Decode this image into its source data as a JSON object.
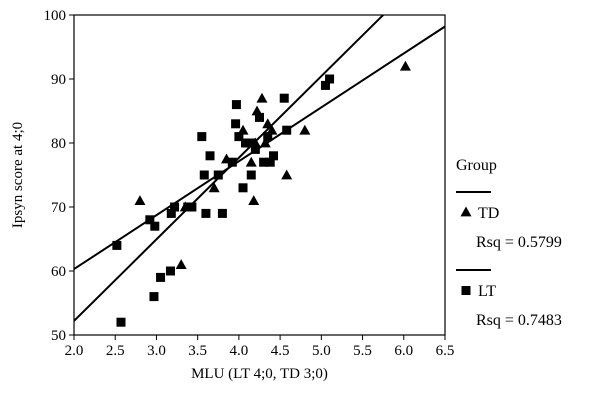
{
  "chart_data": {
    "type": "scatter",
    "title": "",
    "xlabel": "MLU (LT 4;0, TD 3;0)",
    "ylabel": "Ipsyn score at 4;0",
    "xlim": [
      2.0,
      6.5
    ],
    "ylim": [
      50,
      100
    ],
    "x_ticks": [
      "2.0",
      "2.5",
      "3.0",
      "3.5",
      "4.0",
      "4.5",
      "5.0",
      "5.5",
      "6.0",
      "6.5"
    ],
    "y_ticks": [
      "50",
      "60",
      "70",
      "80",
      "90",
      "100"
    ],
    "grid": false,
    "legend": {
      "title": "Group",
      "placement": "right",
      "entries": [
        {
          "marker": "triangle",
          "label": "TD",
          "rsq": "Rsq = 0.5799"
        },
        {
          "marker": "square",
          "label": "LT",
          "rsq": "Rsq = 0.7483"
        }
      ]
    },
    "series": [
      {
        "name": "TD",
        "marker": "triangle",
        "points": [
          [
            2.8,
            71
          ],
          [
            3.3,
            61
          ],
          [
            3.35,
            70
          ],
          [
            3.7,
            73
          ],
          [
            3.85,
            77.5
          ],
          [
            4.05,
            82
          ],
          [
            4.15,
            77
          ],
          [
            4.18,
            71
          ],
          [
            4.2,
            80
          ],
          [
            4.22,
            85
          ],
          [
            4.28,
            87
          ],
          [
            4.32,
            80
          ],
          [
            4.35,
            83
          ],
          [
            4.4,
            82
          ],
          [
            4.58,
            75
          ],
          [
            4.8,
            82
          ],
          [
            6.02,
            92
          ]
        ],
        "fit": {
          "x": [
            2.0,
            5.75
          ],
          "y": [
            52.2,
            100
          ]
        }
      },
      {
        "name": "LT",
        "marker": "square",
        "points": [
          [
            2.52,
            64
          ],
          [
            2.57,
            52
          ],
          [
            2.92,
            68
          ],
          [
            2.97,
            56
          ],
          [
            2.98,
            67
          ],
          [
            3.05,
            59
          ],
          [
            3.17,
            60
          ],
          [
            3.18,
            69
          ],
          [
            3.22,
            70
          ],
          [
            3.38,
            70
          ],
          [
            3.43,
            70
          ],
          [
            3.55,
            81
          ],
          [
            3.58,
            75
          ],
          [
            3.6,
            69
          ],
          [
            3.65,
            78
          ],
          [
            3.75,
            75
          ],
          [
            3.8,
            69
          ],
          [
            3.92,
            77
          ],
          [
            3.96,
            83
          ],
          [
            3.97,
            86
          ],
          [
            4.0,
            81
          ],
          [
            4.05,
            73
          ],
          [
            4.08,
            80
          ],
          [
            4.15,
            75
          ],
          [
            4.15,
            80
          ],
          [
            4.2,
            79
          ],
          [
            4.25,
            84
          ],
          [
            4.3,
            77
          ],
          [
            4.35,
            81
          ],
          [
            4.38,
            77
          ],
          [
            4.42,
            78
          ],
          [
            4.55,
            87
          ],
          [
            4.58,
            82
          ],
          [
            5.05,
            89
          ],
          [
            5.1,
            90
          ]
        ],
        "fit": {
          "x": [
            2.0,
            6.5
          ],
          "y": [
            60.3,
            98.2
          ]
        }
      }
    ]
  }
}
